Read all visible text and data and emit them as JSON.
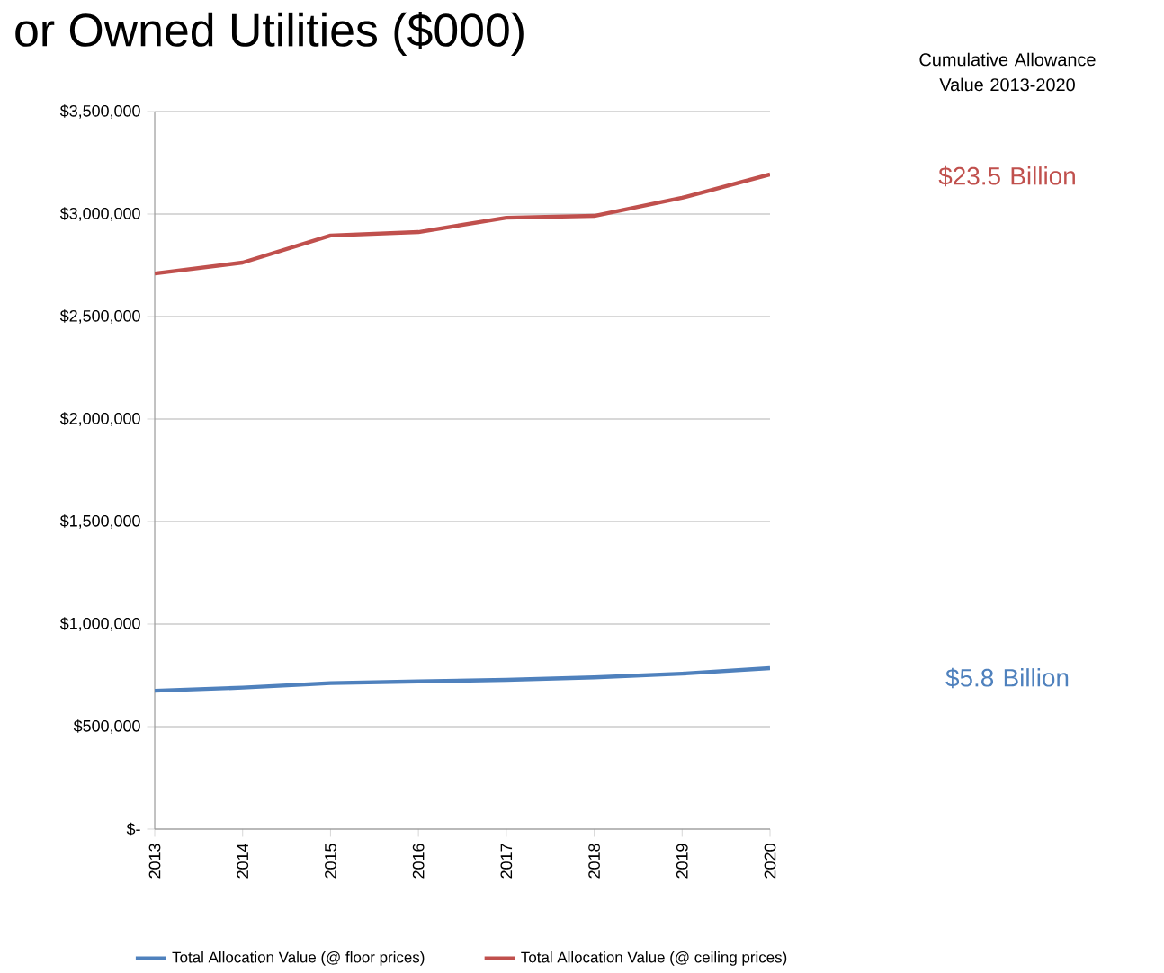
{
  "chart_data": {
    "type": "line",
    "title": "or Owned Utilities ($000)",
    "categories": [
      "2013",
      "2014",
      "2015",
      "2016",
      "2017",
      "2018",
      "2019",
      "2020"
    ],
    "series": [
      {
        "name": "Total Allocation Value (@ floor prices)",
        "color": "#4f81bd",
        "values": [
          675000,
          690000,
          712000,
          720000,
          728000,
          740000,
          758000,
          785000
        ]
      },
      {
        "name": "Total Allocation Value (@ ceiling prices)",
        "color": "#c0504d",
        "values": [
          2710000,
          2763000,
          2895000,
          2912000,
          2982000,
          2991000,
          3079000,
          3193000
        ]
      }
    ],
    "ylim": [
      0,
      3500000
    ],
    "yticks": [
      {
        "value": 0,
        "label": "$-"
      },
      {
        "value": 500000,
        "label": "$500,000"
      },
      {
        "value": 1000000,
        "label": "$1,000,000"
      },
      {
        "value": 1500000,
        "label": "$1,500,000"
      },
      {
        "value": 2000000,
        "label": "$2,000,000"
      },
      {
        "value": 2500000,
        "label": "$2,500,000"
      },
      {
        "value": 3000000,
        "label": "$3,000,000"
      },
      {
        "value": 3500000,
        "label": "$3,500,000"
      }
    ],
    "grid": "y",
    "legend": "bottom",
    "marker": "none",
    "line_style": "solid",
    "annotations": [
      "Cumulative Allowance Value 2013-2020",
      "$23.5 Billion",
      "$5.8 Billion"
    ]
  }
}
